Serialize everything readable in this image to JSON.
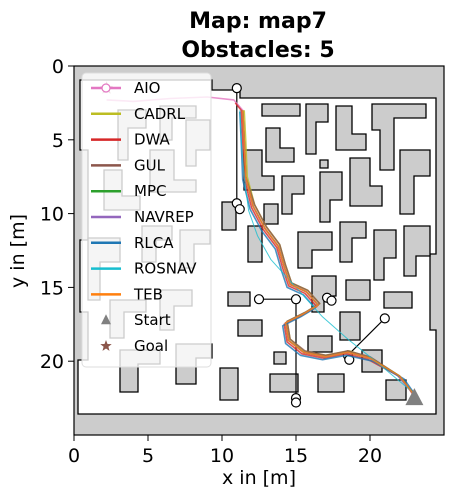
{
  "chart_data": {
    "type": "line",
    "title_line1": "Map: map7",
    "title_line2": "Obstacles: 5",
    "xlabel": "x in [m]",
    "ylabel": "y in [m]",
    "xlim": [
      0,
      25
    ],
    "ylim": [
      25,
      0
    ],
    "y_inverted": true,
    "xticks": [
      0,
      5,
      10,
      15,
      20
    ],
    "yticks": [
      0,
      5,
      10,
      15,
      20
    ],
    "grid": false,
    "legend_placement": "upper-left",
    "map_colors": {
      "free": "#ffffff",
      "occupied": "#cccccc",
      "outline": "#000000"
    },
    "series": [
      {
        "name": "AIO",
        "color": "#e377c2",
        "marker": "circle",
        "points": [
          [
            23,
            22.3
          ],
          [
            22,
            21
          ],
          [
            20,
            19.8
          ],
          [
            18.5,
            19.4
          ],
          [
            17,
            19.7
          ],
          [
            15.5,
            19.4
          ],
          [
            14.5,
            18.6
          ],
          [
            14.3,
            17.4
          ],
          [
            15.5,
            16.8
          ],
          [
            16.5,
            16.2
          ],
          [
            15.7,
            15.3
          ],
          [
            14.6,
            14.8
          ],
          [
            14.2,
            13.6
          ],
          [
            13.8,
            12.2
          ],
          [
            12.9,
            11
          ],
          [
            12.1,
            9.5
          ],
          [
            11.6,
            7.5
          ],
          [
            11.5,
            5
          ],
          [
            11.4,
            3
          ],
          [
            10.8,
            2.3
          ],
          [
            9,
            2.1
          ],
          [
            6.5,
            2.2
          ],
          [
            4,
            2.4
          ],
          [
            2.2,
            2.3
          ]
        ]
      },
      {
        "name": "CADRL",
        "color": "#bcbd22",
        "marker": "none",
        "points": [
          [
            23,
            22.2
          ],
          [
            21.8,
            20.9
          ],
          [
            20.1,
            19.8
          ],
          [
            18.6,
            19.3
          ],
          [
            17,
            19.6
          ],
          [
            15.5,
            19.3
          ],
          [
            14.6,
            18.5
          ],
          [
            14.4,
            17.3
          ],
          [
            15.6,
            16.7
          ],
          [
            16.6,
            16.1
          ],
          [
            15.8,
            15.2
          ],
          [
            14.7,
            14.7
          ],
          [
            14.3,
            13.5
          ],
          [
            13.9,
            12.1
          ],
          [
            13,
            10.9
          ],
          [
            12.2,
            9.4
          ],
          [
            11.7,
            7.5
          ],
          [
            11.6,
            5
          ],
          [
            11.5,
            3
          ]
        ]
      },
      {
        "name": "DWA",
        "color": "#d62728",
        "marker": "none",
        "points": [
          [
            23,
            22.4
          ],
          [
            22.1,
            21.1
          ],
          [
            19.9,
            19.9
          ],
          [
            18.4,
            19.5
          ],
          [
            16.9,
            19.8
          ],
          [
            15.4,
            19.5
          ],
          [
            14.4,
            18.7
          ],
          [
            14.2,
            17.5
          ],
          [
            15.4,
            16.9
          ],
          [
            16.4,
            16.3
          ],
          [
            15.6,
            15.4
          ],
          [
            14.5,
            14.9
          ],
          [
            14.1,
            13.7
          ],
          [
            13.7,
            12.3
          ],
          [
            12.8,
            11.1
          ],
          [
            12,
            9.6
          ],
          [
            11.5,
            7.6
          ],
          [
            11.4,
            5
          ],
          [
            11.3,
            3
          ],
          [
            10.9,
            2.5
          ]
        ]
      },
      {
        "name": "GUL",
        "color": "#8c564b",
        "marker": "none",
        "points": [
          [
            23,
            22.3
          ],
          [
            22,
            21
          ],
          [
            20,
            19.7
          ],
          [
            18.5,
            19.3
          ],
          [
            17,
            19.6
          ],
          [
            15.6,
            19.3
          ],
          [
            14.6,
            18.5
          ],
          [
            14.4,
            17.3
          ],
          [
            15.6,
            16.7
          ],
          [
            16.6,
            16.1
          ],
          [
            15.8,
            15.2
          ],
          [
            14.7,
            14.7
          ],
          [
            14.3,
            13.5
          ],
          [
            13.9,
            12.1
          ],
          [
            13,
            10.9
          ],
          [
            12.2,
            9.4
          ],
          [
            11.6,
            7.5
          ],
          [
            11.5,
            5
          ],
          [
            11.4,
            3
          ]
        ]
      },
      {
        "name": "MPC",
        "color": "#2ca02c",
        "marker": "none",
        "points": [
          [
            23,
            22.3
          ],
          [
            22,
            21
          ],
          [
            20,
            19.8
          ],
          [
            18.5,
            19.4
          ],
          [
            17,
            19.7
          ],
          [
            15.5,
            19.4
          ],
          [
            14.5,
            18.6
          ],
          [
            14.3,
            17.4
          ],
          [
            15.5,
            16.8
          ],
          [
            16.5,
            16.2
          ],
          [
            15.7,
            15.3
          ],
          [
            14.6,
            14.8
          ],
          [
            14.2,
            13.6
          ],
          [
            13.8,
            12.2
          ],
          [
            12.9,
            11
          ],
          [
            12.1,
            9.5
          ],
          [
            11.6,
            7.5
          ],
          [
            11.5,
            5
          ],
          [
            11.4,
            3
          ]
        ]
      },
      {
        "name": "NAVREP",
        "color": "#9467bd",
        "marker": "none",
        "points": [
          [
            23,
            22.3
          ],
          [
            21.9,
            21
          ],
          [
            20,
            19.8
          ],
          [
            18.5,
            19.4
          ],
          [
            17,
            19.7
          ],
          [
            15.5,
            19.4
          ],
          [
            14.5,
            18.6
          ],
          [
            14.3,
            17.4
          ],
          [
            15.5,
            16.8
          ],
          [
            16.5,
            16.2
          ],
          [
            15.7,
            15.3
          ],
          [
            14.6,
            14.8
          ],
          [
            14.2,
            13.6
          ],
          [
            13.8,
            12.2
          ],
          [
            12.9,
            11
          ],
          [
            12.1,
            9.5
          ],
          [
            11.6,
            7.5
          ],
          [
            11.5,
            5
          ],
          [
            11.4,
            3
          ]
        ]
      },
      {
        "name": "RLCA",
        "color": "#1f77b4",
        "marker": "none",
        "points": [
          [
            23,
            22.2
          ],
          [
            22.3,
            21.2
          ],
          [
            20.2,
            20
          ],
          [
            18.4,
            19.6
          ],
          [
            16.8,
            19.9
          ],
          [
            15.3,
            19.6
          ],
          [
            14.3,
            18.8
          ],
          [
            14.1,
            17.6
          ],
          [
            15.3,
            17
          ],
          [
            16.3,
            16.4
          ],
          [
            15.5,
            15.5
          ],
          [
            14.4,
            15
          ],
          [
            14,
            13.8
          ],
          [
            13.6,
            12.4
          ],
          [
            12.7,
            11.2
          ],
          [
            11.9,
            9.7
          ],
          [
            11.4,
            7.7
          ],
          [
            11.3,
            5.1
          ],
          [
            11.2,
            3.1
          ]
        ]
      },
      {
        "name": "ROSNAV",
        "color": "#17becf",
        "marker": "none",
        "points": [
          [
            23,
            22.2
          ],
          [
            20.5,
            20.1
          ],
          [
            18.5,
            18.5
          ],
          [
            16.8,
            17
          ],
          [
            15,
            15
          ],
          [
            13.3,
            13.1
          ],
          [
            12.4,
            11.5
          ],
          [
            11.8,
            9.8
          ],
          [
            11.5,
            7.5
          ],
          [
            11.3,
            5
          ],
          [
            11.2,
            3
          ]
        ]
      },
      {
        "name": "TEB",
        "color": "#ff7f0e",
        "marker": "none",
        "points": [
          [
            23,
            22.3
          ],
          [
            22,
            21
          ],
          [
            20,
            19.8
          ],
          [
            18.5,
            19.4
          ],
          [
            17,
            19.7
          ],
          [
            15.5,
            19.4
          ],
          [
            14.5,
            18.6
          ],
          [
            14.3,
            17.4
          ],
          [
            15.5,
            16.8
          ],
          [
            16.5,
            16.2
          ],
          [
            15.7,
            15.3
          ],
          [
            14.6,
            14.8
          ],
          [
            14.2,
            13.6
          ],
          [
            13.8,
            12.2
          ],
          [
            12.9,
            11
          ],
          [
            12.1,
            9.5
          ],
          [
            11.6,
            7.5
          ],
          [
            11.5,
            5
          ],
          [
            11.4,
            3
          ]
        ]
      }
    ],
    "start": {
      "name": "Start",
      "color": "#808080",
      "marker": "triangle",
      "x": 23,
      "y": 22.5
    },
    "goal": {
      "name": "Goal",
      "color": "#8c564b",
      "marker": "star",
      "x": 2.2,
      "y": 1.5
    },
    "obstacle_paths": [
      [
        [
          11,
          1.5
        ],
        [
          11,
          9.3
        ]
      ],
      [
        [
          11,
          9.5
        ],
        [
          11.2,
          9.7
        ]
      ],
      [
        [
          12.5,
          15.8
        ],
        [
          15,
          15.8
        ]
      ],
      [
        [
          15,
          15.8
        ],
        [
          15,
          22.8
        ]
      ],
      [
        [
          17.1,
          15.7
        ],
        [
          17.4,
          15.9
        ]
      ],
      [
        [
          18.5,
          19.8
        ],
        [
          18.5,
          19.5
        ]
      ],
      [
        [
          21,
          17.1
        ],
        [
          18.5,
          19.6
        ]
      ]
    ],
    "obstacle_circles": [
      [
        11,
        1.5
      ],
      [
        11,
        9.3
      ],
      [
        11.2,
        9.7
      ],
      [
        12.5,
        15.8
      ],
      [
        15,
        15.8
      ],
      [
        17.1,
        15.7
      ],
      [
        17.4,
        15.9
      ],
      [
        21,
        17.1
      ],
      [
        18.5,
        19.6
      ],
      [
        18.6,
        19.9
      ],
      [
        15,
        22.5
      ],
      [
        15,
        22.8
      ]
    ]
  }
}
